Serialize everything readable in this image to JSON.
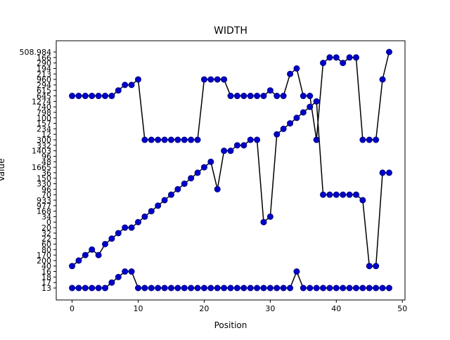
{
  "chart_data": {
    "type": "line",
    "title": "WIDTH",
    "xlabel": "Position",
    "ylabel": "Value",
    "xlim": [
      -2.4,
      50.4
    ],
    "x_ticks": [
      0,
      10,
      20,
      30,
      40,
      50
    ],
    "y_categories": [
      "13",
      "17",
      "18",
      "16",
      "40",
      "200",
      "170",
      "80",
      "60",
      "22",
      "32",
      "20",
      "0",
      "34",
      "168",
      "977",
      "933",
      "70",
      "96",
      "330",
      "150",
      "36",
      "1665",
      "48",
      "96",
      "1403",
      "332",
      "300",
      "12",
      "234",
      "157",
      "100",
      "798",
      "740",
      "1274",
      "645",
      "615",
      "294",
      "960",
      "213",
      "194",
      "290",
      "166",
      "508.984"
    ],
    "grid": false,
    "line_color": "#000000",
    "marker_face": "#0000cc",
    "marker_edge": "#000080",
    "series": [
      {
        "x": [
          0,
          1,
          2,
          3,
          4,
          5,
          6,
          7,
          8,
          9,
          10,
          11,
          12,
          13,
          14,
          15,
          16,
          17,
          18,
          19,
          20,
          21,
          22,
          23,
          24,
          25,
          26,
          27,
          28,
          29,
          30,
          31,
          32,
          33,
          34,
          35,
          36,
          37,
          38,
          39,
          40,
          41,
          42,
          43,
          44,
          45,
          46,
          47,
          48
        ],
        "values": [
          "645",
          "645",
          "645",
          "645",
          "645",
          "645",
          "645",
          "615",
          "294",
          "294",
          "960",
          "300",
          "300",
          "300",
          "300",
          "300",
          "300",
          "300",
          "300",
          "300",
          "960",
          "960",
          "960",
          "960",
          "645",
          "645",
          "645",
          "645",
          "645",
          "645",
          "615",
          "645",
          "645",
          "213",
          "194",
          "645",
          "645",
          "300",
          "290",
          "166",
          "166",
          "290",
          "166",
          "166",
          "300",
          "300",
          "300",
          "960",
          "508.984"
        ]
      },
      {
        "x": [
          0,
          1,
          2,
          3,
          4,
          5,
          6,
          7,
          8,
          9,
          10,
          11,
          12,
          13,
          14,
          15,
          16,
          17,
          18,
          19,
          20,
          21,
          22,
          23,
          24,
          25,
          26,
          27,
          28,
          29,
          30,
          31,
          32,
          33,
          34,
          35,
          36,
          37,
          38,
          39,
          40,
          41,
          42,
          43,
          44,
          45,
          46,
          47,
          48
        ],
        "values": [
          "40",
          "200",
          "170",
          "80",
          "170",
          "60",
          "22",
          "32",
          "20",
          "20",
          "0",
          "34",
          "168",
          "977",
          "933",
          "70",
          "96",
          "330",
          "150",
          "36",
          "1665",
          "48",
          "96",
          "1403",
          "1403",
          "332",
          "332",
          "300",
          "300",
          "0",
          "34",
          "12",
          "234",
          "157",
          "100",
          "798",
          "740",
          "1274",
          "70",
          "70",
          "70",
          "70",
          "70",
          "70",
          "933",
          "40",
          "40",
          "36",
          "36"
        ]
      },
      {
        "x": [
          0,
          1,
          2,
          3,
          4,
          5,
          6,
          7,
          8,
          9,
          10,
          11,
          12,
          13,
          14,
          15,
          16,
          17,
          18,
          19,
          20,
          21,
          22,
          23,
          24,
          25,
          26,
          27,
          28,
          29,
          30,
          31,
          32,
          33,
          34,
          35,
          36,
          37,
          38,
          39,
          40,
          41,
          42,
          43,
          44,
          45,
          46,
          47,
          48
        ],
        "values": [
          "13",
          "13",
          "13",
          "13",
          "13",
          "13",
          "17",
          "18",
          "16",
          "16",
          "13",
          "13",
          "13",
          "13",
          "13",
          "13",
          "13",
          "13",
          "13",
          "13",
          "13",
          "13",
          "13",
          "13",
          "13",
          "13",
          "13",
          "13",
          "13",
          "13",
          "13",
          "13",
          "13",
          "13",
          "16",
          "13",
          "13",
          "13",
          "13",
          "13",
          "13",
          "13",
          "13",
          "13",
          "13",
          "13",
          "13",
          "13",
          "13"
        ]
      }
    ]
  }
}
